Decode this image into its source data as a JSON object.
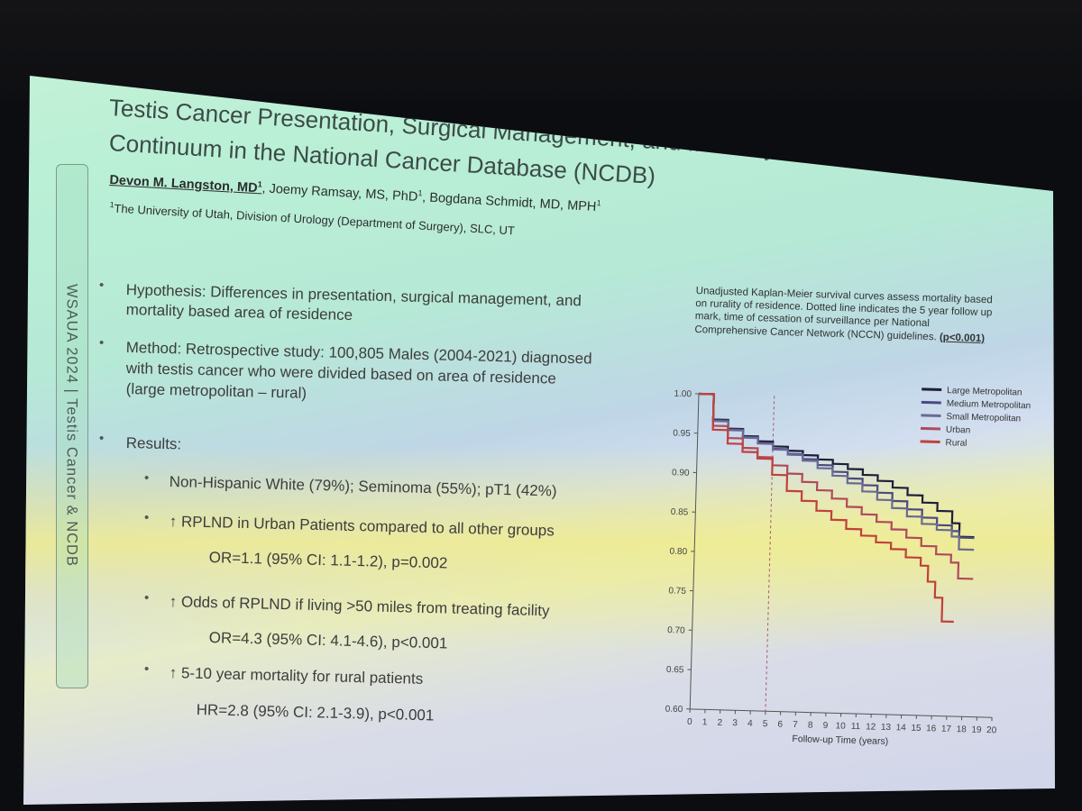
{
  "side_label": "WSAUA 2024 | Testis Cancer & NCDB",
  "title": {
    "line1": "Testis Cancer Presentation, Surgical Management, and Mortality Across the Rural-Urban",
    "line2": "Continuum in the National Cancer Database (NCDB)"
  },
  "authors": {
    "main": "Devon M. Langston, MD",
    "main_sup": "1",
    "others": ", Joemy Ramsay, MS, PhD",
    "others_sup1": "1",
    "others2": ", Bogdana Schmidt, MD, MPH",
    "others_sup2": "1"
  },
  "affiliation": {
    "sup": "1",
    "text": "The University of Utah, Division of Urology (Department of Surgery), SLC, UT"
  },
  "bullets": {
    "hypothesis_l1": "Hypothesis: Differences in presentation, surgical management, and",
    "hypothesis_l2": "mortality based area of residence",
    "method_l1": "Method:  Retrospective study: 100,805 Males (2004-2021) diagnosed",
    "method_l2": "with testis cancer who were divided based on area of residence",
    "method_l3": "(large metropolitan – rural)",
    "results": "Results:",
    "r1": "Non-Hispanic White (79%); Seminoma (55%); pT1 (42%)",
    "r2": "↑ RPLND in Urban Patients compared to all other groups",
    "r2_stat": "OR=1.1 (95% CI: 1.1-1.2), p=0.002",
    "r3": "↑ Odds of RPLND if living >50 miles from treating facility",
    "r3_stat": "OR=4.3 (95% CI: 4.1-4.6), p<0.001",
    "r4": "↑ 5-10 year mortality for rural patients",
    "r4_stat": "HR=2.8 (95% CI: 2.1-3.9), p<0.001",
    "bullet_glyph": "•"
  },
  "caption": {
    "text": "Unadjusted Kaplan-Meier survival curves assess mortality based on rurality of residence. Dotted line indicates the 5 year follow up mark, time of cessation of surveillance per National Comprehensive Cancer Network (NCCN) guidelines. ",
    "p_value": "(p<0.001)"
  },
  "chart_data": {
    "type": "line",
    "step": true,
    "xlabel": "Follow-up Time (years)",
    "ylabel": "",
    "xlim": [
      0,
      20
    ],
    "ylim": [
      0.6,
      1.0
    ],
    "x_ticks": [
      0,
      1,
      2,
      3,
      4,
      5,
      6,
      7,
      8,
      9,
      10,
      11,
      12,
      13,
      14,
      15,
      16,
      17,
      18,
      19,
      20
    ],
    "y_ticks": [
      "0.60",
      "0.65",
      "0.70",
      "0.75",
      "0.80",
      "0.85",
      "0.90",
      "0.95",
      "1.00"
    ],
    "reference_line": {
      "x": 5,
      "style": "dotted"
    },
    "legend_position": "top-right",
    "series": [
      {
        "name": "Large Metropolitan",
        "color": "#1c1f3a",
        "points": [
          [
            0,
            1.0
          ],
          [
            1,
            0.968
          ],
          [
            2,
            0.957
          ],
          [
            3,
            0.948
          ],
          [
            4,
            0.942
          ],
          [
            5,
            0.936
          ],
          [
            6,
            0.931
          ],
          [
            7,
            0.926
          ],
          [
            8,
            0.921
          ],
          [
            9,
            0.916
          ],
          [
            10,
            0.91
          ],
          [
            11,
            0.903
          ],
          [
            12,
            0.896
          ],
          [
            13,
            0.888
          ],
          [
            14,
            0.879
          ],
          [
            15,
            0.87
          ],
          [
            16,
            0.86
          ],
          [
            17,
            0.845
          ],
          [
            17.5,
            0.828
          ],
          [
            18.5,
            0.828
          ]
        ]
      },
      {
        "name": "Medium Metropolitan",
        "color": "#4a4a84",
        "points": [
          [
            0,
            1.0
          ],
          [
            1,
            0.967
          ],
          [
            2,
            0.956
          ],
          [
            3,
            0.947
          ],
          [
            4,
            0.94
          ],
          [
            5,
            0.933
          ],
          [
            6,
            0.927
          ],
          [
            7,
            0.921
          ],
          [
            8,
            0.914
          ],
          [
            9,
            0.906
          ],
          [
            10,
            0.898
          ],
          [
            11,
            0.89
          ],
          [
            12,
            0.881
          ],
          [
            13,
            0.871
          ],
          [
            14,
            0.861
          ],
          [
            15,
            0.851
          ],
          [
            16,
            0.842
          ],
          [
            17,
            0.835
          ],
          [
            17.5,
            0.827
          ],
          [
            18.5,
            0.827
          ]
        ]
      },
      {
        "name": "Small Metropolitan",
        "color": "#6a6a92",
        "points": [
          [
            0,
            1.0
          ],
          [
            1,
            0.966
          ],
          [
            2,
            0.955
          ],
          [
            3,
            0.946
          ],
          [
            4,
            0.939
          ],
          [
            5,
            0.932
          ],
          [
            6,
            0.926
          ],
          [
            7,
            0.919
          ],
          [
            8,
            0.91
          ],
          [
            9,
            0.901
          ],
          [
            10,
            0.892
          ],
          [
            11,
            0.882
          ],
          [
            12,
            0.872
          ],
          [
            13,
            0.862
          ],
          [
            14,
            0.852
          ],
          [
            15,
            0.843
          ],
          [
            16,
            0.836
          ],
          [
            17,
            0.828
          ],
          [
            17.5,
            0.812
          ],
          [
            18.5,
            0.812
          ]
        ]
      },
      {
        "name": "Urban",
        "color": "#b04a5a",
        "points": [
          [
            0,
            1.0
          ],
          [
            1,
            0.96
          ],
          [
            2,
            0.945
          ],
          [
            3,
            0.933
          ],
          [
            4,
            0.922
          ],
          [
            5,
            0.912
          ],
          [
            6,
            0.902
          ],
          [
            7,
            0.892
          ],
          [
            8,
            0.882
          ],
          [
            9,
            0.872
          ],
          [
            10,
            0.862
          ],
          [
            11,
            0.853
          ],
          [
            12,
            0.844
          ],
          [
            13,
            0.835
          ],
          [
            14,
            0.825
          ],
          [
            15,
            0.815
          ],
          [
            16,
            0.805
          ],
          [
            17,
            0.795
          ],
          [
            17.5,
            0.775
          ],
          [
            18.5,
            0.775
          ]
        ]
      },
      {
        "name": "Rural",
        "color": "#c0413c",
        "points": [
          [
            0,
            1.0
          ],
          [
            1,
            0.955
          ],
          [
            2,
            0.938
          ],
          [
            3,
            0.928
          ],
          [
            4,
            0.92
          ],
          [
            5,
            0.9
          ],
          [
            6,
            0.88
          ],
          [
            7,
            0.868
          ],
          [
            8,
            0.856
          ],
          [
            9,
            0.845
          ],
          [
            10,
            0.834
          ],
          [
            11,
            0.826
          ],
          [
            12,
            0.818
          ],
          [
            13,
            0.81
          ],
          [
            14,
            0.8
          ],
          [
            15,
            0.79
          ],
          [
            15.5,
            0.77
          ],
          [
            16,
            0.75
          ],
          [
            16.5,
            0.72
          ],
          [
            17.3,
            0.72
          ]
        ]
      }
    ]
  }
}
